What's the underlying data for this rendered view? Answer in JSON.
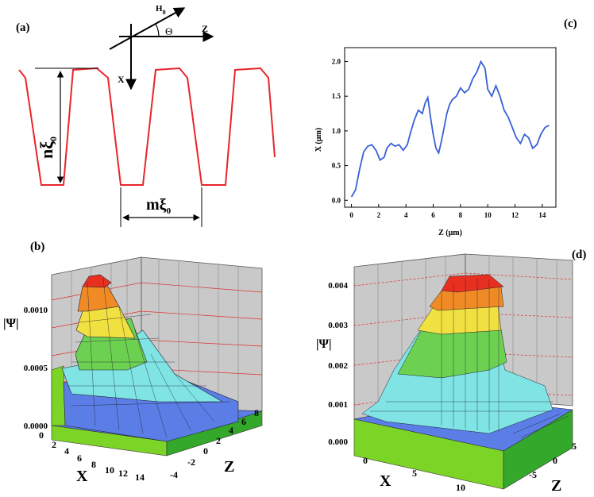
{
  "panel_a": {
    "label": "(a)",
    "h0": "H",
    "h0_sub": "0",
    "z": "Z",
    "theta": "Θ",
    "x": "X",
    "n_main": "n",
    "n_xi": "ξ",
    "n_sub": "0",
    "m_main": "m",
    "m_xi": "ξ",
    "m_sub": "0",
    "profile_color": "#e8252a"
  },
  "panel_b": {
    "label": "(b)",
    "zlabel": "|Ψ|",
    "xlabel": "X",
    "ylabel": "Z",
    "vticks": [
      "0.0000",
      "0.0005",
      "0.0010"
    ],
    "xticks": [
      "0",
      "2",
      "4",
      "6",
      "8",
      "10",
      "12",
      "14"
    ],
    "zticks": [
      "-4",
      "-2",
      "0",
      "2",
      "4",
      "6",
      "8"
    ]
  },
  "panel_d": {
    "label": "(d)",
    "zlabel": "|Ψ|",
    "xlabel": "X",
    "ylabel": "Z",
    "vticks": [
      "0.000",
      "0.001",
      "0.002",
      "0.003",
      "0.004"
    ],
    "xticks": [
      "0",
      "5",
      "10"
    ],
    "zticks": [
      "-5",
      "0",
      "5"
    ]
  },
  "chart_data": {
    "type": "line",
    "title": "(c)",
    "xlabel": "Z (μm)",
    "ylabel": "X (μm)",
    "xlim": [
      -0.5,
      15
    ],
    "ylim": [
      -0.1,
      2.2
    ],
    "xticks": [
      "0",
      "2",
      "4",
      "6",
      "8",
      "10",
      "12",
      "14"
    ],
    "yticks": [
      "0.0",
      "0.5",
      "1.0",
      "1.5",
      "2.0"
    ],
    "line_color": "#3a5fd8",
    "x": [
      0.0,
      0.3,
      0.6,
      0.9,
      1.2,
      1.5,
      1.8,
      2.1,
      2.4,
      2.6,
      2.9,
      3.2,
      3.5,
      3.8,
      4.1,
      4.3,
      4.6,
      4.9,
      5.2,
      5.4,
      5.6,
      5.8,
      6.0,
      6.2,
      6.4,
      6.6,
      6.8,
      7.0,
      7.2,
      7.4,
      7.7,
      8.0,
      8.3,
      8.6,
      8.9,
      9.2,
      9.5,
      9.8,
      10.0,
      10.3,
      10.6,
      10.9,
      11.2,
      11.5,
      11.8,
      12.1,
      12.4,
      12.7,
      13.0,
      13.3,
      13.6,
      13.9,
      14.2,
      14.5
    ],
    "y": [
      0.05,
      0.15,
      0.45,
      0.7,
      0.78,
      0.8,
      0.72,
      0.58,
      0.62,
      0.75,
      0.82,
      0.78,
      0.8,
      0.72,
      0.8,
      0.95,
      1.15,
      1.3,
      1.25,
      1.4,
      1.48,
      1.2,
      0.95,
      0.75,
      0.68,
      0.85,
      1.05,
      1.25,
      1.38,
      1.45,
      1.5,
      1.62,
      1.55,
      1.6,
      1.75,
      1.85,
      2.0,
      1.9,
      1.6,
      1.5,
      1.65,
      1.5,
      1.3,
      1.2,
      1.05,
      0.9,
      0.82,
      0.95,
      0.9,
      0.75,
      0.8,
      0.95,
      1.05,
      1.08
    ]
  }
}
